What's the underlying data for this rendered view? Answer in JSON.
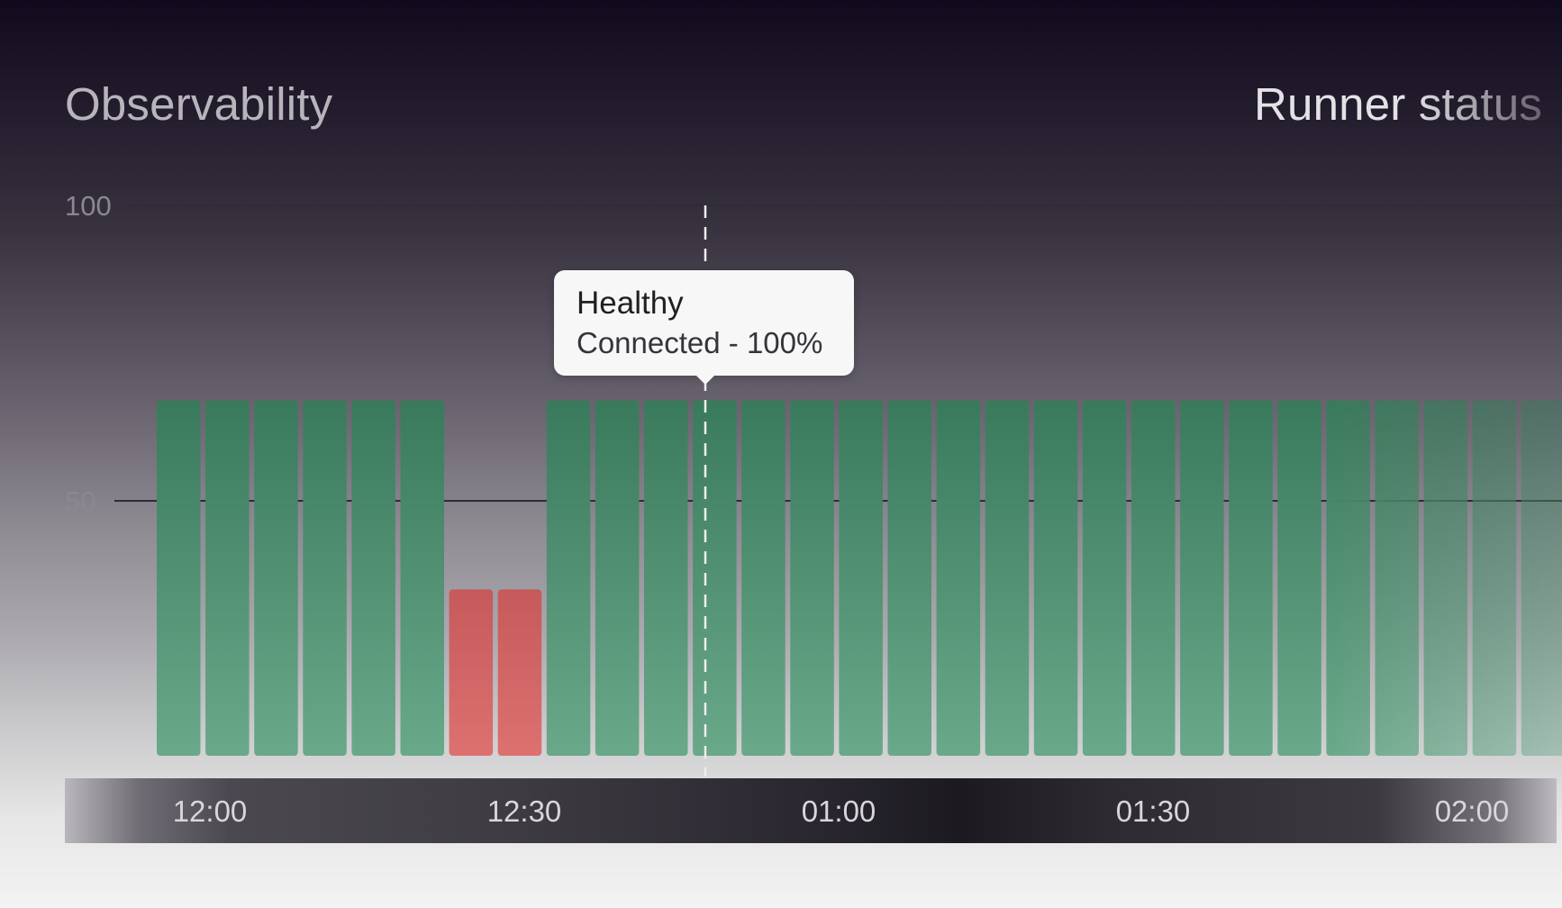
{
  "header": {
    "left_title": "Observability",
    "right_title": "Runner status"
  },
  "tooltip": {
    "title": "Healthy",
    "subtitle": "Connected - 100%"
  },
  "colors": {
    "healthy": "#3f8a66",
    "unhealthy": "#d36362"
  },
  "chart_data": {
    "type": "bar",
    "title": "",
    "xlabel": "",
    "ylabel": "",
    "ylim": [
      0,
      100
    ],
    "yticks": [
      "100",
      "50"
    ],
    "xticks": [
      "12:00",
      "12:30",
      "01:00",
      "01:30",
      "02:00"
    ],
    "grid": true,
    "values": [
      67,
      67,
      67,
      67,
      67,
      67,
      35,
      35,
      67,
      67,
      67,
      67,
      67,
      67,
      67,
      67,
      67,
      67,
      67,
      67,
      67,
      67,
      67,
      67,
      67,
      67,
      67,
      67,
      67
    ],
    "status": [
      "healthy",
      "healthy",
      "healthy",
      "healthy",
      "healthy",
      "healthy",
      "unhealthy",
      "unhealthy",
      "healthy",
      "healthy",
      "healthy",
      "healthy",
      "healthy",
      "healthy",
      "healthy",
      "healthy",
      "healthy",
      "healthy",
      "healthy",
      "healthy",
      "healthy",
      "healthy",
      "healthy",
      "healthy",
      "healthy",
      "healthy",
      "healthy",
      "healthy",
      "healthy"
    ],
    "hover_index": 11
  }
}
